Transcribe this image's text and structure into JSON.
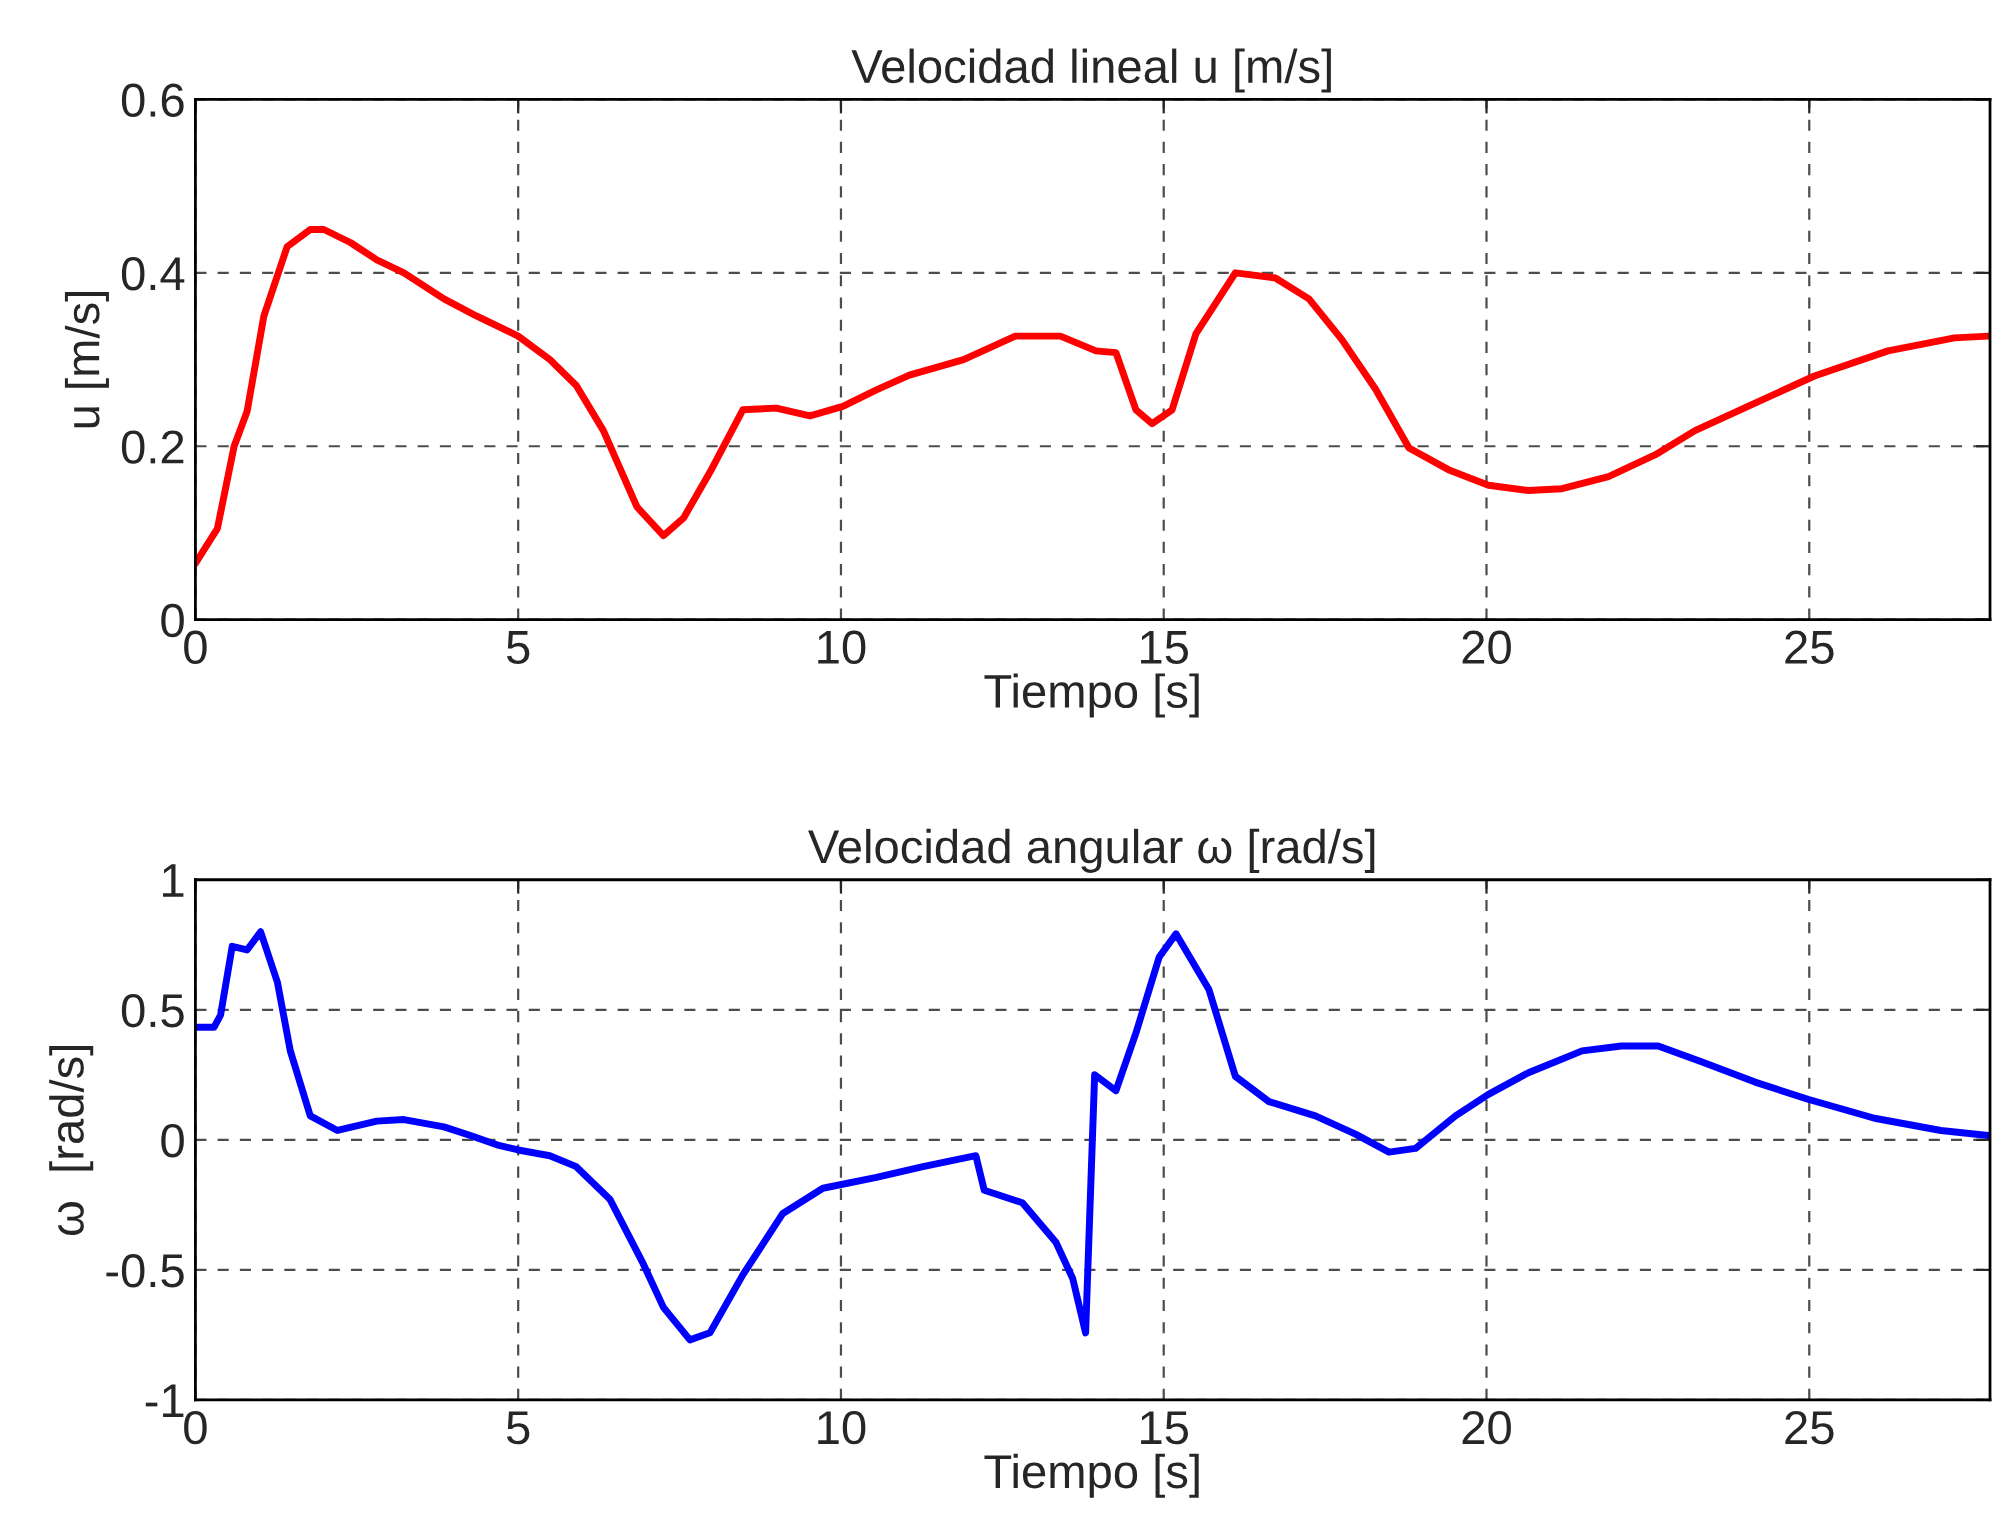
{
  "chart_data": [
    {
      "type": "line",
      "title": "Velocidad lineal u [m/s]",
      "xlabel": "Tiempo [s]",
      "ylabel": "u [m/s]",
      "xlim": [
        0,
        27.8
      ],
      "ylim": [
        0,
        0.6
      ],
      "xticks": [
        0,
        5,
        10,
        15,
        20,
        25
      ],
      "yticks": [
        0,
        0.2,
        0.4,
        0.6
      ],
      "grid": true,
      "line_style": "solid",
      "marker": "none",
      "series": [
        {
          "color": "#ff0000",
          "x": [
            0,
            0.34,
            0.6,
            0.8,
            1.06,
            1.42,
            1.78,
            1.99,
            2.4,
            2.81,
            3.23,
            3.85,
            4.36,
            5.0,
            5.49,
            5.9,
            6.32,
            6.84,
            7.25,
            7.56,
            7.97,
            8.48,
            9.0,
            9.52,
            10.03,
            10.55,
            11.06,
            11.9,
            12.7,
            13.4,
            13.95,
            14.26,
            14.57,
            14.82,
            15.13,
            15.5,
            16.11,
            16.73,
            17.25,
            17.76,
            18.28,
            18.8,
            19.41,
            20.03,
            20.65,
            21.17,
            21.89,
            22.61,
            23.23,
            24.05,
            25.08,
            26.22,
            27.25,
            27.77
          ],
          "values": [
            0.065,
            0.105,
            0.2,
            0.24,
            0.35,
            0.43,
            0.45,
            0.45,
            0.435,
            0.415,
            0.4,
            0.37,
            0.35,
            0.327,
            0.3,
            0.27,
            0.218,
            0.13,
            0.097,
            0.117,
            0.17,
            0.242,
            0.244,
            0.235,
            0.246,
            0.265,
            0.282,
            0.3,
            0.327,
            0.327,
            0.31,
            0.308,
            0.242,
            0.226,
            0.242,
            0.33,
            0.4,
            0.394,
            0.37,
            0.323,
            0.266,
            0.198,
            0.173,
            0.155,
            0.149,
            0.151,
            0.165,
            0.19,
            0.218,
            0.246,
            0.281,
            0.31,
            0.325,
            0.327
          ]
        }
      ]
    },
    {
      "type": "line",
      "title": "Velocidad angular ω [rad/s]",
      "xlabel": "Tiempo [s]",
      "ylabel": "ω  [rad/s]",
      "xlim": [
        0,
        27.8
      ],
      "ylim": [
        -1,
        1
      ],
      "xticks": [
        0,
        5,
        10,
        15,
        20,
        25
      ],
      "yticks": [
        -1,
        -0.5,
        0,
        0.5,
        1
      ],
      "grid": true,
      "line_style": "solid",
      "marker": "none",
      "series": [
        {
          "color": "#0000ff",
          "x": [
            0,
            0.29,
            0.39,
            0.57,
            0.8,
            1.01,
            1.27,
            1.47,
            1.78,
            2.2,
            2.81,
            3.23,
            3.85,
            4.26,
            4.67,
            5.0,
            5.49,
            5.9,
            6.42,
            6.94,
            7.25,
            7.66,
            7.97,
            8.48,
            9.1,
            9.72,
            10.55,
            11.27,
            12.09,
            12.22,
            12.81,
            13.33,
            13.59,
            13.79,
            13.93,
            14.26,
            14.57,
            14.93,
            15.19,
            15.7,
            16.11,
            16.63,
            17.35,
            17.97,
            18.49,
            18.9,
            19.52,
            20.03,
            20.65,
            21.48,
            22.09,
            22.66,
            23.33,
            24.16,
            24.98,
            26.01,
            27.04,
            27.77
          ],
          "values": [
            0.433,
            0.433,
            0.48,
            0.744,
            0.73,
            0.8,
            0.606,
            0.342,
            0.092,
            0.036,
            0.072,
            0.078,
            0.05,
            0.017,
            -0.019,
            -0.039,
            -0.061,
            -0.103,
            -0.228,
            -0.478,
            -0.644,
            -0.769,
            -0.742,
            -0.519,
            -0.283,
            -0.186,
            -0.144,
            -0.103,
            -0.061,
            -0.194,
            -0.242,
            -0.394,
            -0.533,
            -0.742,
            0.25,
            0.189,
            0.411,
            0.703,
            0.792,
            0.578,
            0.244,
            0.147,
            0.092,
            0.022,
            -0.047,
            -0.033,
            0.092,
            0.175,
            0.258,
            0.342,
            0.361,
            0.361,
            0.3,
            0.222,
            0.156,
            0.083,
            0.036,
            0.017
          ]
        }
      ]
    }
  ]
}
